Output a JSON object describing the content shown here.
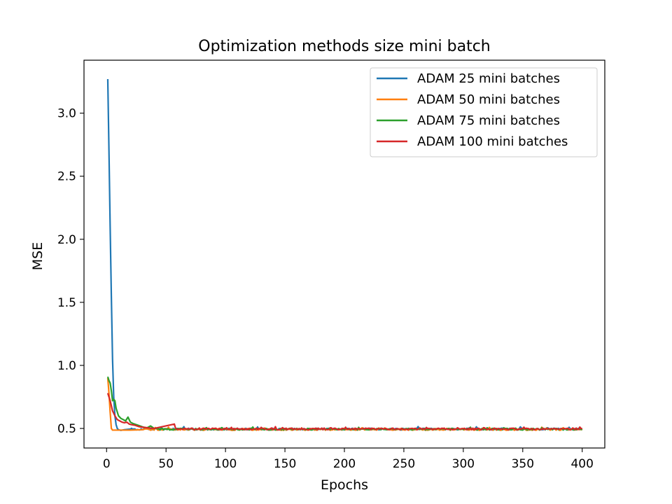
{
  "chart_data": {
    "type": "line",
    "title": "Optimization methods size mini batch",
    "xlabel": "Epochs",
    "ylabel": "MSE",
    "xlim": [
      -19,
      419
    ],
    "ylim": [
      0.345,
      3.42
    ],
    "xticks": [
      0,
      50,
      100,
      150,
      200,
      250,
      300,
      350,
      400
    ],
    "yticks": [
      0.5,
      1.0,
      1.5,
      2.0,
      2.5,
      3.0
    ],
    "xtick_labels": [
      "0",
      "50",
      "100",
      "150",
      "200",
      "250",
      "300",
      "350",
      "400"
    ],
    "ytick_labels": [
      "0.5",
      "1.0",
      "1.5",
      "2.0",
      "2.5",
      "3.0"
    ],
    "grid": false,
    "legend_position": "top-right",
    "x_range": [
      1,
      400
    ],
    "series": [
      {
        "name": "ADAM 25 mini batches",
        "color": "#1f77b4",
        "points": [
          [
            1,
            3.27
          ],
          [
            2,
            2.7
          ],
          [
            3,
            2.1
          ],
          [
            4,
            1.55
          ],
          [
            5,
            1.05
          ],
          [
            6,
            0.75
          ],
          [
            7,
            0.6
          ],
          [
            8,
            0.53
          ],
          [
            9,
            0.5
          ],
          [
            10,
            0.49
          ],
          [
            12,
            0.485
          ],
          [
            15,
            0.49
          ],
          [
            20,
            0.495
          ]
        ],
        "steady_value": 0.495
      },
      {
        "name": "ADAM 50 mini batches",
        "color": "#ff7f0e",
        "points": [
          [
            1,
            0.9
          ],
          [
            2,
            0.78
          ],
          [
            3,
            0.63
          ],
          [
            4,
            0.5
          ],
          [
            5,
            0.487
          ],
          [
            10,
            0.487
          ],
          [
            20,
            0.487
          ],
          [
            30,
            0.49
          ]
        ],
        "steady_value": 0.492
      },
      {
        "name": "ADAM 75 mini batches",
        "color": "#2ca02c",
        "points": [
          [
            1,
            0.91
          ],
          [
            2,
            0.88
          ],
          [
            3,
            0.86
          ],
          [
            4,
            0.8
          ],
          [
            5,
            0.72
          ],
          [
            6,
            0.73
          ],
          [
            7,
            0.72
          ],
          [
            8,
            0.66
          ],
          [
            10,
            0.6
          ],
          [
            12,
            0.58
          ],
          [
            14,
            0.57
          ],
          [
            16,
            0.56
          ],
          [
            18,
            0.59
          ],
          [
            20,
            0.55
          ],
          [
            22,
            0.54
          ],
          [
            25,
            0.53
          ],
          [
            28,
            0.52
          ],
          [
            31,
            0.51
          ],
          [
            34,
            0.505
          ],
          [
            37,
            0.52
          ],
          [
            40,
            0.5
          ]
        ],
        "steady_value": 0.494
      },
      {
        "name": "ADAM 100 mini batches",
        "color": "#d62728",
        "points": [
          [
            1,
            0.78
          ],
          [
            2,
            0.75
          ],
          [
            3,
            0.72
          ],
          [
            4,
            0.68
          ],
          [
            5,
            0.64
          ],
          [
            7,
            0.6
          ],
          [
            9,
            0.57
          ],
          [
            11,
            0.56
          ],
          [
            13,
            0.55
          ],
          [
            15,
            0.545
          ],
          [
            17,
            0.55
          ],
          [
            19,
            0.535
          ],
          [
            21,
            0.53
          ],
          [
            24,
            0.525
          ],
          [
            27,
            0.515
          ],
          [
            30,
            0.51
          ],
          [
            35,
            0.505
          ],
          [
            40,
            0.5
          ],
          [
            57,
            0.535
          ],
          [
            58,
            0.5
          ]
        ],
        "steady_value": 0.496
      }
    ]
  }
}
